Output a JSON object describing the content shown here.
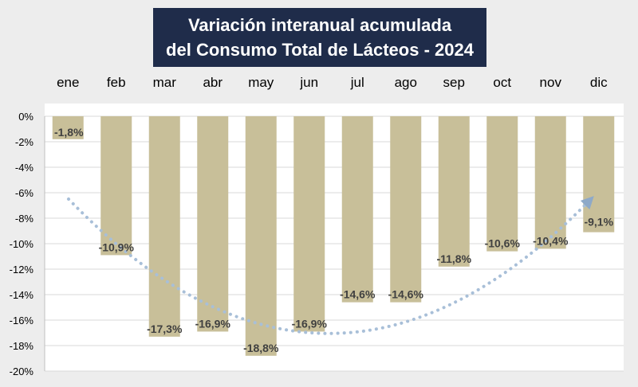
{
  "title": {
    "line1": "Variación interanual acumulada",
    "line2": "del Consumo Total de Lácteos - 2024"
  },
  "colors": {
    "bar": "#c8bf99",
    "title_bg": "#1f2c4a",
    "trend": "#a8bfd8",
    "grid": "#d9d9d9",
    "label": "#404040"
  },
  "chart_data": {
    "type": "bar",
    "title": "Variación interanual acumulada del Consumo Total de Lácteos - 2024",
    "categories": [
      "ene",
      "feb",
      "mar",
      "abr",
      "may",
      "jun",
      "jul",
      "ago",
      "sep",
      "oct",
      "nov",
      "dic"
    ],
    "values": [
      -1.8,
      -10.9,
      -17.3,
      -16.9,
      -18.8,
      -16.9,
      -14.6,
      -14.6,
      -11.8,
      -10.6,
      -10.4,
      -9.1
    ],
    "data_labels": [
      "-1,8%",
      "-10,9%",
      "-17,3%",
      "-16,9%",
      "-18,8%",
      "-16,9%",
      "-14,6%",
      "-14,6%",
      "-11,8%",
      "-10,6%",
      "-10,4%",
      "-9,1%"
    ],
    "ylim": [
      -20,
      0
    ],
    "yticks": [
      0,
      -2,
      -4,
      -6,
      -8,
      -10,
      -12,
      -14,
      -16,
      -18,
      -20
    ],
    "ytick_labels": [
      "0%",
      "-2%",
      "-4%",
      "-6%",
      "-8%",
      "-10%",
      "-12%",
      "-14%",
      "-16%",
      "-18%",
      "-20%"
    ],
    "category_axis_position": "top",
    "grid": true,
    "legend": "none",
    "trend_arrow": "dotted curved arrow from ene to dic"
  }
}
